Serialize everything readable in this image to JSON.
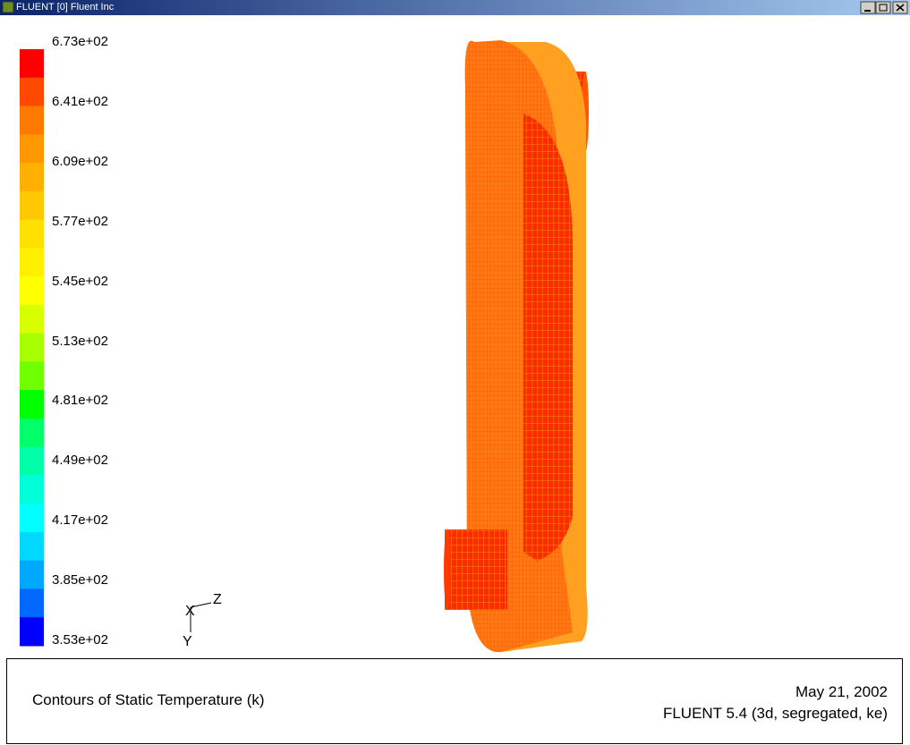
{
  "window": {
    "title": "FLUENT [0] Fluent Inc"
  },
  "colorbar": {
    "labels": [
      "6.73e+02",
      "6.41e+02",
      "6.09e+02",
      "5.77e+02",
      "5.45e+02",
      "5.13e+02",
      "4.81e+02",
      "4.49e+02",
      "4.17e+02",
      "3.85e+02",
      "3.53e+02"
    ],
    "colors": [
      "#ff0000",
      "#ff4800",
      "#ff7800",
      "#ff9800",
      "#ffb000",
      "#ffc800",
      "#ffe000",
      "#fff000",
      "#ffff00",
      "#d8ff00",
      "#a8ff00",
      "#70ff00",
      "#00ff00",
      "#00ff68",
      "#00ffa8",
      "#00ffd8",
      "#00ffff",
      "#00d8ff",
      "#00a8ff",
      "#0068ff",
      "#0000ff"
    ]
  },
  "axes": {
    "x": "X",
    "y": "Y",
    "z": "Z"
  },
  "footer": {
    "caption": "Contours of Static Temperature (k)",
    "date": "May 21, 2002",
    "version": "FLUENT 5.4 (3d, segregated, ke)"
  }
}
